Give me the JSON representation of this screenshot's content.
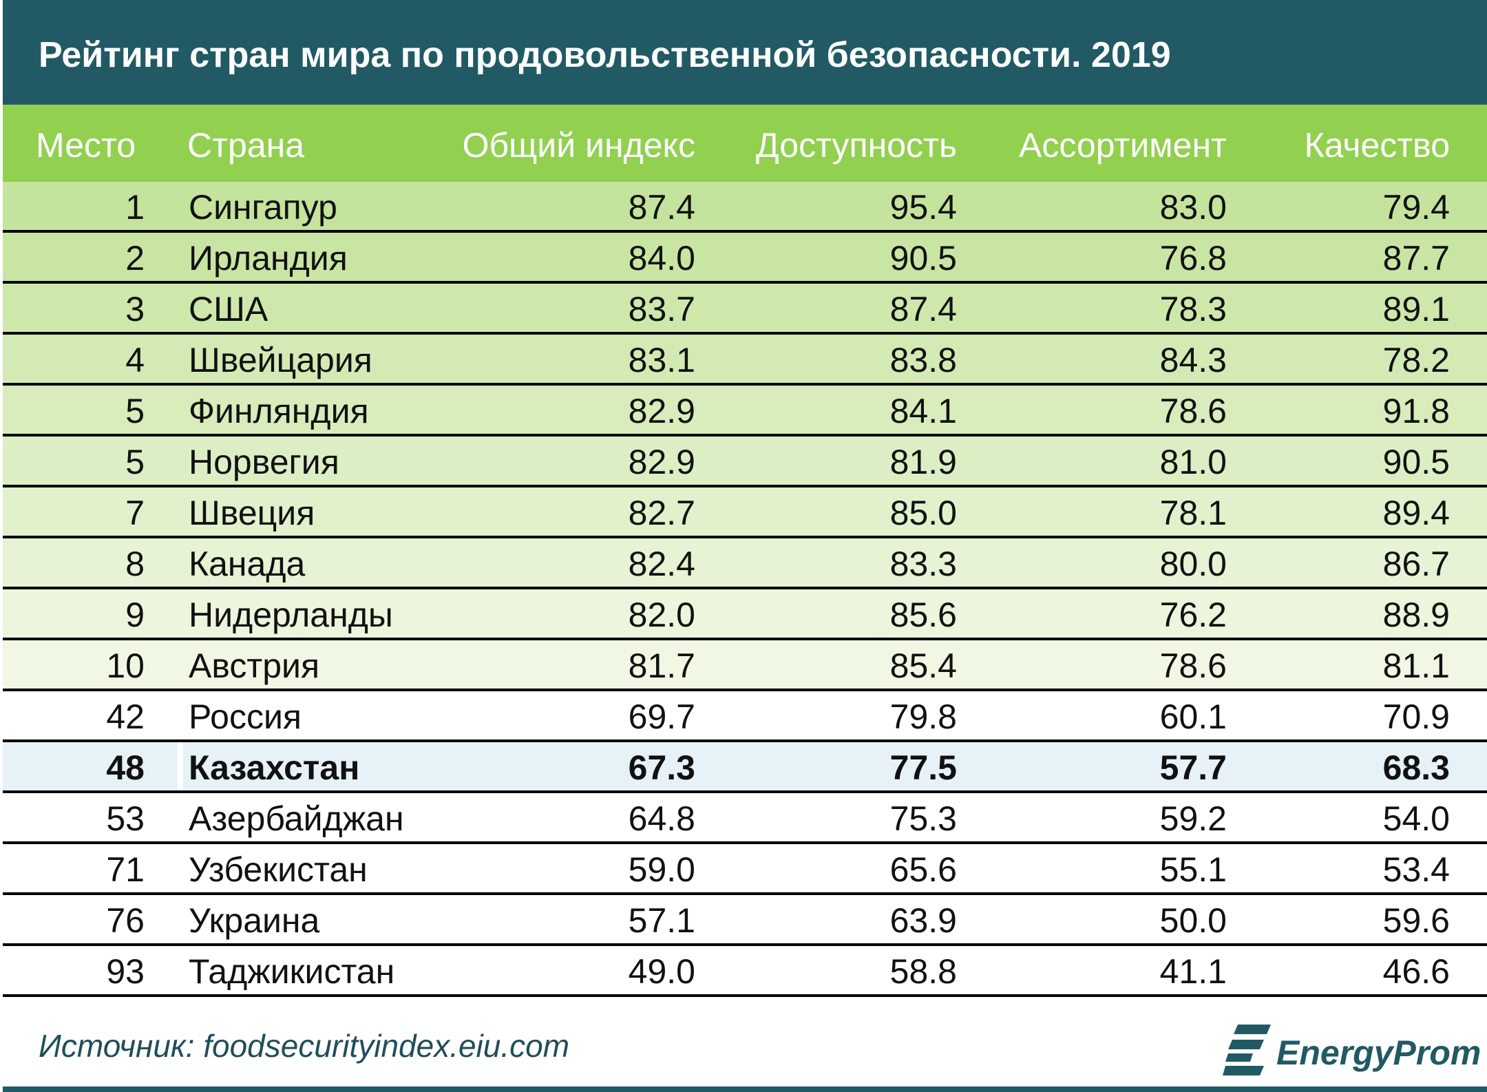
{
  "chart_data": {
    "type": "table",
    "title": "Рейтинг стран мира по продовольственной безопасности. 2019",
    "columns": [
      "Место",
      "Страна",
      "Общий индекс",
      "Доступность",
      "Ассортимент",
      "Качество"
    ],
    "rows": [
      [
        "1",
        "Сингапур",
        "87.4",
        "95.4",
        "83.0",
        "79.4"
      ],
      [
        "2",
        "Ирландия",
        "84.0",
        "90.5",
        "76.8",
        "87.7"
      ],
      [
        "3",
        "США",
        "83.7",
        "87.4",
        "78.3",
        "89.1"
      ],
      [
        "4",
        "Швейцария",
        "83.1",
        "83.8",
        "84.3",
        "78.2"
      ],
      [
        "5",
        "Финляндия",
        "82.9",
        "84.1",
        "78.6",
        "91.8"
      ],
      [
        "5",
        "Норвегия",
        "82.9",
        "81.9",
        "81.0",
        "90.5"
      ],
      [
        "7",
        "Швеция",
        "82.7",
        "85.0",
        "78.1",
        "89.4"
      ],
      [
        "8",
        "Канада",
        "82.4",
        "83.3",
        "80.0",
        "86.7"
      ],
      [
        "9",
        "Нидерланды",
        "82.0",
        "85.6",
        "76.2",
        "88.9"
      ],
      [
        "10",
        "Австрия",
        "81.7",
        "85.4",
        "78.6",
        "81.1"
      ],
      [
        "42",
        "Россия",
        "69.7",
        "79.8",
        "60.1",
        "70.9"
      ],
      [
        "48",
        "Казахстан",
        "67.3",
        "77.5",
        "57.7",
        "68.3"
      ],
      [
        "53",
        "Азербайджан",
        "64.8",
        "75.3",
        "59.2",
        "54.0"
      ],
      [
        "71",
        "Узбекистан",
        "59.0",
        "65.6",
        "55.1",
        "53.4"
      ],
      [
        "76",
        "Украина",
        "57.1",
        "63.9",
        "50.0",
        "59.6"
      ],
      [
        "93",
        "Таджикистан",
        "49.0",
        "58.8",
        "41.1",
        "46.6"
      ]
    ],
    "highlighted_row": "Казахстан",
    "source": "Источник: foodsecurityindex.eiu.com"
  },
  "colors": {
    "title_bar": "#215a64",
    "header_row": "#92d050",
    "top_row_shade": "#c4e39c",
    "bottom_row_shade": "#ffffff",
    "highlight": "#e6f1f8",
    "source_text": "#1f4e5a"
  },
  "logo": {
    "text": "EnergyProm",
    "icon": "energyprom-logo-icon"
  }
}
